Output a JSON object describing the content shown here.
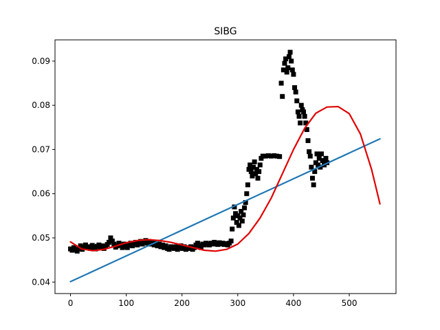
{
  "chart_data": {
    "type": "scatter",
    "title": "SIBG",
    "xlabel": "",
    "ylabel": "",
    "xlim": [
      -27.8,
      583.8
    ],
    "ylim": [
      0.0374,
      0.0948
    ],
    "x_ticks": [
      0,
      100,
      200,
      300,
      400,
      500
    ],
    "y_ticks": [
      0.04,
      0.05,
      0.06,
      0.07,
      0.08,
      0.09
    ],
    "y_tick_labels": [
      "0.04",
      "0.05",
      "0.06",
      "0.07",
      "0.08",
      "0.09"
    ],
    "grid": false,
    "series": [
      {
        "kind": "scatter",
        "marker": "square",
        "color": "#000000",
        "points": [
          [
            0,
            0.0475
          ],
          [
            3,
            0.0472
          ],
          [
            6,
            0.0478
          ],
          [
            9,
            0.0473
          ],
          [
            12,
            0.047
          ],
          [
            15,
            0.0476
          ],
          [
            18,
            0.0482
          ],
          [
            21,
            0.0474
          ],
          [
            24,
            0.0479
          ],
          [
            27,
            0.0484
          ],
          [
            30,
            0.0478
          ],
          [
            33,
            0.048
          ],
          [
            36,
            0.0476
          ],
          [
            39,
            0.0483
          ],
          [
            42,
            0.0479
          ],
          [
            45,
            0.0475
          ],
          [
            48,
            0.0481
          ],
          [
            51,
            0.0484
          ],
          [
            54,
            0.0478
          ],
          [
            57,
            0.0482
          ],
          [
            60,
            0.0476
          ],
          [
            63,
            0.0481
          ],
          [
            66,
            0.0485
          ],
          [
            69,
            0.049
          ],
          [
            72,
            0.05
          ],
          [
            75,
            0.0493
          ],
          [
            78,
            0.0486
          ],
          [
            81,
            0.0479
          ],
          [
            84,
            0.0482
          ],
          [
            87,
            0.0488
          ],
          [
            90,
            0.0484
          ],
          [
            93,
            0.0478
          ],
          [
            96,
            0.0486
          ],
          [
            99,
            0.0481
          ],
          [
            102,
            0.0478
          ],
          [
            105,
            0.0484
          ],
          [
            108,
            0.0488
          ],
          [
            111,
            0.0482
          ],
          [
            114,
            0.0486
          ],
          [
            117,
            0.049
          ],
          [
            120,
            0.0484
          ],
          [
            123,
            0.0488
          ],
          [
            126,
            0.0492
          ],
          [
            129,
            0.0486
          ],
          [
            132,
            0.049
          ],
          [
            135,
            0.0494
          ],
          [
            138,
            0.0488
          ],
          [
            141,
            0.0492
          ],
          [
            144,
            0.0486
          ],
          [
            147,
            0.049
          ],
          [
            150,
            0.0484
          ],
          [
            153,
            0.0488
          ],
          [
            156,
            0.0482
          ],
          [
            159,
            0.0486
          ],
          [
            162,
            0.048
          ],
          [
            165,
            0.0484
          ],
          [
            168,
            0.0478
          ],
          [
            171,
            0.0482
          ],
          [
            174,
            0.0476
          ],
          [
            177,
            0.0474
          ],
          [
            180,
            0.048
          ],
          [
            183,
            0.0478
          ],
          [
            186,
            0.0476
          ],
          [
            189,
            0.048
          ],
          [
            192,
            0.0474
          ],
          [
            195,
            0.0478
          ],
          [
            198,
            0.0482
          ],
          [
            201,
            0.0476
          ],
          [
            204,
            0.048
          ],
          [
            207,
            0.0474
          ],
          [
            210,
            0.0478
          ],
          [
            213,
            0.0476
          ],
          [
            216,
            0.048
          ],
          [
            219,
            0.0474
          ],
          [
            222,
            0.0478
          ],
          [
            225,
            0.0484
          ],
          [
            228,
            0.0488
          ],
          [
            231,
            0.0482
          ],
          [
            234,
            0.0478
          ],
          [
            237,
            0.0486
          ],
          [
            240,
            0.0484
          ],
          [
            243,
            0.0488
          ],
          [
            246,
            0.0486
          ],
          [
            249,
            0.0484
          ],
          [
            252,
            0.0488
          ],
          [
            255,
            0.0486
          ],
          [
            258,
            0.049
          ],
          [
            261,
            0.0487
          ],
          [
            264,
            0.0485
          ],
          [
            267,
            0.0489
          ],
          [
            270,
            0.0486
          ],
          [
            273,
            0.0488
          ],
          [
            276,
            0.0485
          ],
          [
            279,
            0.0487
          ],
          [
            282,
            0.0484
          ],
          [
            285,
            0.0488
          ],
          [
            288,
            0.0493
          ],
          [
            290,
            0.052
          ],
          [
            292,
            0.0545
          ],
          [
            294,
            0.057
          ],
          [
            296,
            0.0555
          ],
          [
            298,
            0.0535
          ],
          [
            300,
            0.055
          ],
          [
            302,
            0.0528
          ],
          [
            304,
            0.0545
          ],
          [
            306,
            0.056
          ],
          [
            308,
            0.0538
          ],
          [
            310,
            0.0552
          ],
          [
            312,
            0.0568
          ],
          [
            314,
            0.058
          ],
          [
            316,
            0.06
          ],
          [
            318,
            0.062
          ],
          [
            320,
            0.0655
          ],
          [
            322,
            0.0665
          ],
          [
            324,
            0.065
          ],
          [
            326,
            0.064
          ],
          [
            328,
            0.066
          ],
          [
            330,
            0.0672
          ],
          [
            332,
            0.0645
          ],
          [
            334,
            0.0655
          ],
          [
            336,
            0.0635
          ],
          [
            338,
            0.065
          ],
          [
            340,
            0.0665
          ],
          [
            342,
            0.068
          ],
          [
            345,
            0.0685
          ],
          [
            350,
            0.0685
          ],
          [
            355,
            0.0686
          ],
          [
            360,
            0.0685
          ],
          [
            365,
            0.0686
          ],
          [
            370,
            0.0685
          ],
          [
            375,
            0.0684
          ],
          [
            378,
            0.085
          ],
          [
            380,
            0.082
          ],
          [
            382,
            0.088
          ],
          [
            384,
            0.0895
          ],
          [
            386,
            0.0905
          ],
          [
            388,
            0.0875
          ],
          [
            390,
            0.0885
          ],
          [
            392,
            0.091
          ],
          [
            394,
            0.092
          ],
          [
            396,
            0.09
          ],
          [
            398,
            0.088
          ],
          [
            400,
            0.087
          ],
          [
            402,
            0.084
          ],
          [
            404,
            0.083
          ],
          [
            406,
            0.081
          ],
          [
            408,
            0.0785
          ],
          [
            410,
            0.0775
          ],
          [
            412,
            0.076
          ],
          [
            414,
            0.08
          ],
          [
            416,
            0.079
          ],
          [
            418,
            0.0785
          ],
          [
            420,
            0.0775
          ],
          [
            422,
            0.076
          ],
          [
            424,
            0.0745
          ],
          [
            426,
            0.072
          ],
          [
            428,
            0.0695
          ],
          [
            430,
            0.0685
          ],
          [
            432,
            0.066
          ],
          [
            434,
            0.0635
          ],
          [
            436,
            0.062
          ],
          [
            438,
            0.065
          ],
          [
            440,
            0.067
          ],
          [
            442,
            0.069
          ],
          [
            444,
            0.0665
          ],
          [
            446,
            0.068
          ],
          [
            448,
            0.066
          ],
          [
            450,
            0.069
          ],
          [
            452,
            0.0675
          ],
          [
            455,
            0.0665
          ],
          [
            458,
            0.068
          ],
          [
            460,
            0.067
          ]
        ]
      },
      {
        "kind": "line",
        "name": "",
        "color": "#1f77b4",
        "x": [
          0,
          555
        ],
        "y": [
          0.0401,
          0.0724
        ]
      },
      {
        "kind": "line",
        "name": "",
        "color": "#e00000",
        "x": [
          0,
          20,
          40,
          60,
          80,
          100,
          120,
          140,
          160,
          180,
          200,
          220,
          240,
          260,
          280,
          300,
          320,
          340,
          360,
          380,
          400,
          420,
          440,
          460,
          480,
          500,
          520,
          540,
          555
        ],
        "y": [
          0.0491,
          0.0475,
          0.0471,
          0.0474,
          0.0481,
          0.0489,
          0.0494,
          0.0496,
          0.0494,
          0.049,
          0.0484,
          0.0478,
          0.0472,
          0.047,
          0.0474,
          0.0486,
          0.051,
          0.0545,
          0.059,
          0.0645,
          0.07,
          0.0748,
          0.0782,
          0.0796,
          0.0797,
          0.0781,
          0.0735,
          0.0655,
          0.0577
        ]
      }
    ]
  }
}
